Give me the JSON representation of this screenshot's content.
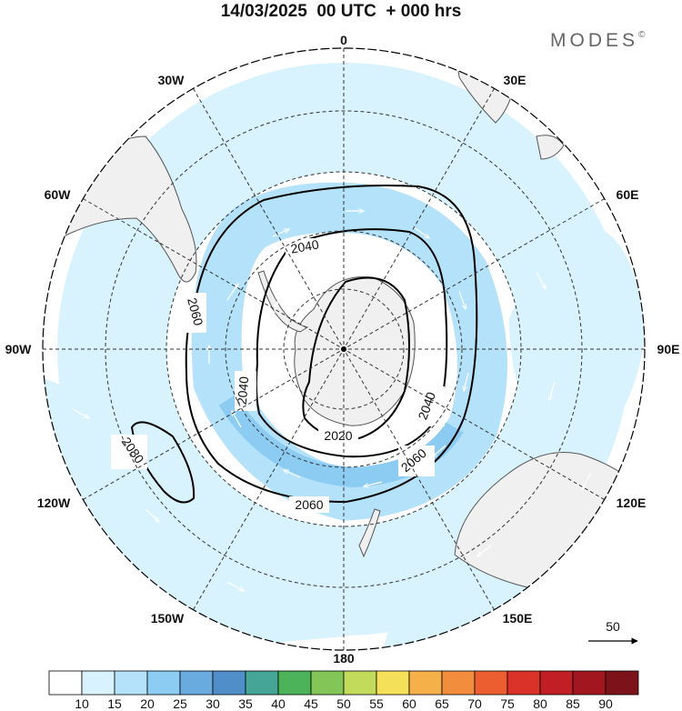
{
  "title": "14/03/2025  00 UTC  + 000 hrs",
  "brand": {
    "name": "MODES",
    "mark": "©"
  },
  "longitude_labels": [
    {
      "id": "0",
      "text": "0"
    },
    {
      "id": "30E",
      "text": "30E"
    },
    {
      "id": "60E",
      "text": "60E"
    },
    {
      "id": "90E",
      "text": "90E"
    },
    {
      "id": "120E",
      "text": "120E"
    },
    {
      "id": "150E",
      "text": "150E"
    },
    {
      "id": "180",
      "text": "180"
    },
    {
      "id": "150W",
      "text": "150W"
    },
    {
      "id": "120W",
      "text": "120W"
    },
    {
      "id": "90W",
      "text": "90W"
    },
    {
      "id": "60W",
      "text": "60W"
    },
    {
      "id": "30W",
      "text": "30W"
    }
  ],
  "contour_labels": [
    "2020",
    "2040",
    "2060",
    "2080"
  ],
  "wind_reference": {
    "value": "50"
  },
  "colorbar": {
    "ticks": [
      "10",
      "15",
      "20",
      "25",
      "30",
      "35",
      "40",
      "45",
      "50",
      "55",
      "60",
      "65",
      "70",
      "75",
      "80",
      "85",
      "90"
    ],
    "colors": [
      "#ffffff",
      "#d8f2fe",
      "#b4e2fa",
      "#8ccbf2",
      "#69aadf",
      "#4f8ec9",
      "#45a596",
      "#4db35a",
      "#83c556",
      "#c3db5a",
      "#f5e05a",
      "#f5b04a",
      "#f18d3c",
      "#ec5e2f",
      "#da3229",
      "#c11f26",
      "#a2171f",
      "#7c121a"
    ]
  },
  "colors": {
    "land": "#f0f0f0",
    "coast": "#555555",
    "grid": "#333333",
    "contour": "#000000"
  }
}
